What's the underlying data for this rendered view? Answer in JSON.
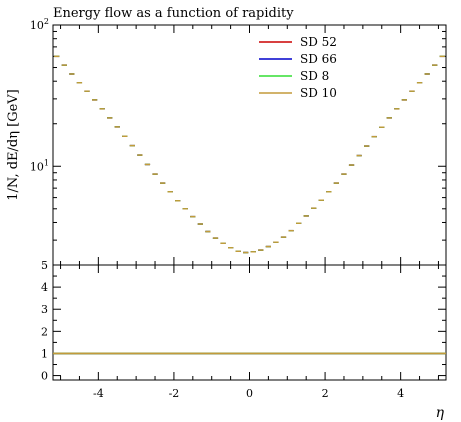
{
  "chart_data": {
    "type": "line",
    "title": "Energy flow as a function of rapidity",
    "xlabel": "η",
    "ylabel": "1/N, dE/dη [GeV]",
    "xlim": [
      -5.2,
      5.2
    ],
    "ylim": [
      2,
      100
    ],
    "yscale": "log",
    "ratio_ylim": [
      -0.2,
      5
    ],
    "x_tick_labels": [
      "-4",
      "-2",
      "0",
      "2",
      "4"
    ],
    "x_ticks": [
      -4,
      -2,
      0,
      2,
      4
    ],
    "y_tick_labels": [
      {
        "base": "10",
        "exp": "1",
        "value": 10
      },
      {
        "base": "10",
        "exp": "2",
        "value": 100
      }
    ],
    "ratio_tick_labels": [
      "0",
      "1",
      "2",
      "3",
      "4",
      "5"
    ],
    "ratio_ticks": [
      0,
      1,
      2,
      3,
      4,
      5
    ],
    "legend": "top-right",
    "series": [
      {
        "name": "SD 52",
        "color": "#cc0000"
      },
      {
        "name": "SD 66",
        "color": "#0000cc"
      },
      {
        "name": "SD 8",
        "color": "#33dd33"
      },
      {
        "name": "SD 10",
        "color": "#c49a3a"
      }
    ],
    "bins": [
      {
        "x": -5.1,
        "y": 60
      },
      {
        "x": -4.9,
        "y": 52
      },
      {
        "x": -4.7,
        "y": 45
      },
      {
        "x": -4.5,
        "y": 39
      },
      {
        "x": -4.3,
        "y": 34
      },
      {
        "x": -4.1,
        "y": 29.5
      },
      {
        "x": -3.9,
        "y": 25.5
      },
      {
        "x": -3.7,
        "y": 22
      },
      {
        "x": -3.5,
        "y": 19
      },
      {
        "x": -3.3,
        "y": 16.3
      },
      {
        "x": -3.1,
        "y": 14
      },
      {
        "x": -2.9,
        "y": 12
      },
      {
        "x": -2.7,
        "y": 10.3
      },
      {
        "x": -2.5,
        "y": 8.8
      },
      {
        "x": -2.3,
        "y": 7.6
      },
      {
        "x": -2.1,
        "y": 6.6
      },
      {
        "x": -1.9,
        "y": 5.7
      },
      {
        "x": -1.7,
        "y": 5.0
      },
      {
        "x": -1.5,
        "y": 4.4
      },
      {
        "x": -1.3,
        "y": 3.9
      },
      {
        "x": -1.1,
        "y": 3.45
      },
      {
        "x": -0.9,
        "y": 3.1
      },
      {
        "x": -0.7,
        "y": 2.85
      },
      {
        "x": -0.5,
        "y": 2.65
      },
      {
        "x": -0.3,
        "y": 2.5
      },
      {
        "x": -0.1,
        "y": 2.45
      },
      {
        "x": 0.1,
        "y": 2.48
      },
      {
        "x": 0.3,
        "y": 2.55
      },
      {
        "x": 0.5,
        "y": 2.7
      },
      {
        "x": 0.7,
        "y": 2.9
      },
      {
        "x": 0.9,
        "y": 3.15
      },
      {
        "x": 1.1,
        "y": 3.5
      },
      {
        "x": 1.3,
        "y": 3.95
      },
      {
        "x": 1.5,
        "y": 4.45
      },
      {
        "x": 1.7,
        "y": 5.05
      },
      {
        "x": 1.9,
        "y": 5.75
      },
      {
        "x": 2.1,
        "y": 6.6
      },
      {
        "x": 2.3,
        "y": 7.6
      },
      {
        "x": 2.5,
        "y": 8.8
      },
      {
        "x": 2.7,
        "y": 10.2
      },
      {
        "x": 2.9,
        "y": 11.9
      },
      {
        "x": 3.1,
        "y": 13.9
      },
      {
        "x": 3.3,
        "y": 16.2
      },
      {
        "x": 3.5,
        "y": 18.9
      },
      {
        "x": 3.7,
        "y": 22
      },
      {
        "x": 3.9,
        "y": 25.5
      },
      {
        "x": 4.1,
        "y": 29.5
      },
      {
        "x": 4.3,
        "y": 34
      },
      {
        "x": 4.5,
        "y": 39
      },
      {
        "x": 4.7,
        "y": 45
      },
      {
        "x": 4.9,
        "y": 52
      },
      {
        "x": 5.1,
        "y": 60
      }
    ],
    "bin_width": 0.2,
    "ratio_value": 1.0
  }
}
